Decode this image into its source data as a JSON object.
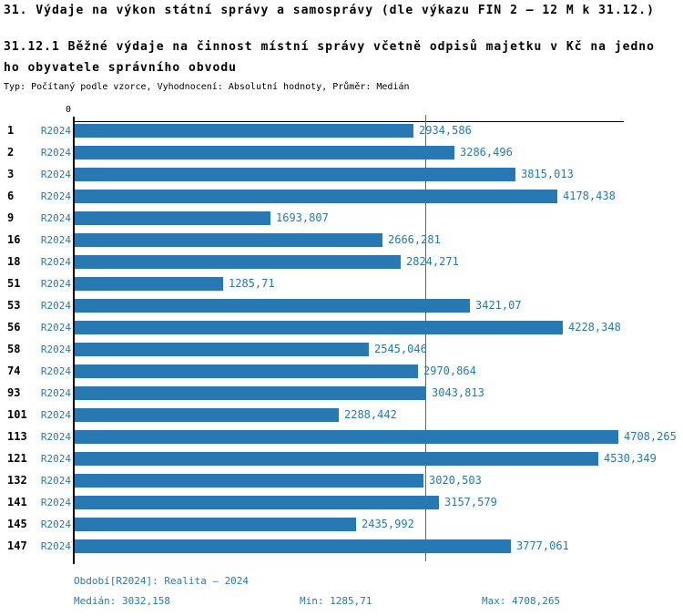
{
  "title": "31. Výdaje na výkon státní správy a samosprávy (dle výkazu FIN 2 – 12 M k 31.12.)",
  "subtitle_line1": "31.12.1 Běžné výdaje na činnost místní správy včetně odpisů majetku v Kč na jedno",
  "subtitle_line2": "ho obyvatele správního obvodu",
  "meta": "Typ: Počítaný podle vzorce, Vyhodnocení: Absolutní hodnoty, Průměr: Medián",
  "axis": {
    "zero_label": "0"
  },
  "chart_data": {
    "type": "bar",
    "orientation": "horizontal",
    "title": "31.12.1 Běžné výdaje na činnost místní správy včetně odpisů majetku v Kč na jednoho obyvatele správního obvodu",
    "categories": [
      "1",
      "2",
      "3",
      "6",
      "9",
      "16",
      "18",
      "51",
      "53",
      "56",
      "58",
      "74",
      "93",
      "101",
      "113",
      "121",
      "132",
      "141",
      "145",
      "147"
    ],
    "series": [
      {
        "name": "R2024",
        "values": [
          2934.586,
          3286.496,
          3815.013,
          4178.438,
          1693.807,
          2666.281,
          2824.271,
          1285.71,
          3421.07,
          4228.348,
          2545.046,
          2970.864,
          3043.813,
          2288.442,
          4708.265,
          4530.349,
          3020.503,
          3157.579,
          2435.992,
          3777.061
        ],
        "value_labels": [
          "2934,586",
          "3286,496",
          "3815,013",
          "4178,438",
          "1693,807",
          "2666,281",
          "2824,271",
          "1285,71",
          "3421,07",
          "4228,348",
          "2545,046",
          "2970,864",
          "3043,813",
          "2288,442",
          "4708,265",
          "4530,349",
          "3020,503",
          "3157,579",
          "2435,992",
          "3777,061"
        ]
      }
    ],
    "xlim": [
      0,
      4755
    ],
    "median": 3032.158,
    "bar_color": "#2878b4",
    "grid": false,
    "legend_position": "none"
  },
  "footer": {
    "period": "Období[R2024]: Realita – 2024",
    "median": "Medián: 3032,158",
    "min": "Min: 1285,71",
    "max": "Max: 4708,265"
  }
}
